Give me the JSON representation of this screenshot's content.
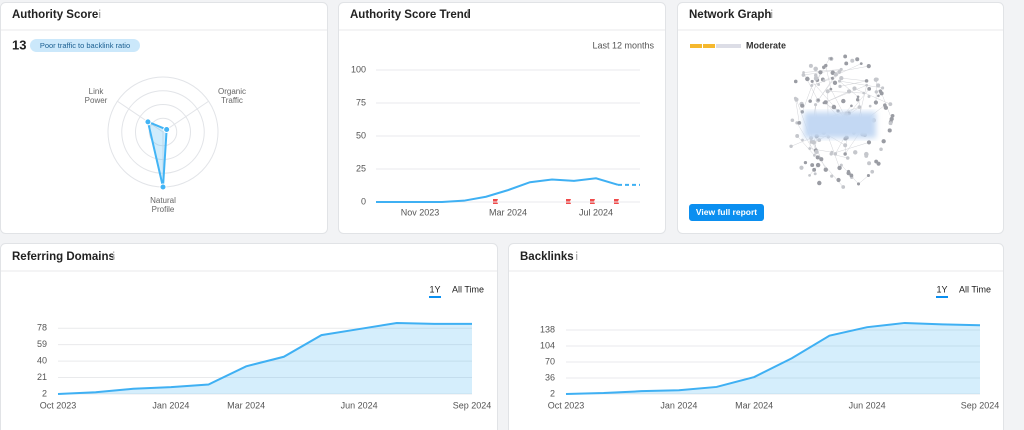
{
  "authority_score": {
    "title": "Authority Score",
    "value": 13,
    "badge": "Poor traffic to backlink ratio",
    "radar": {
      "type": "radar",
      "categories": [
        "Link Power",
        "Organic Traffic",
        "Natural Profile"
      ],
      "values": [
        33,
        8,
        100
      ],
      "rlim": [
        0,
        100
      ],
      "color": "#42b4f5"
    }
  },
  "trend": {
    "type": "line",
    "title": "Authority Score Trend",
    "period": "Last 12 months",
    "categories": [
      null,
      null,
      "Nov 2023",
      null,
      null,
      null,
      "Mar 2024",
      null,
      null,
      null,
      "Jul 2024",
      null,
      null
    ],
    "series": [
      {
        "color": "#3fb0f3",
        "values": [
          0,
          0,
          0,
          0,
          1,
          4,
          9,
          15,
          17,
          16,
          18,
          13,
          null
        ]
      },
      {
        "color": "#3fb0f3",
        "dashed": true,
        "values": [
          null,
          null,
          null,
          null,
          null,
          null,
          null,
          null,
          null,
          null,
          null,
          13,
          13
        ]
      }
    ],
    "ylim": [
      0,
      100
    ],
    "yticks": [
      0,
      25,
      50,
      75,
      100
    ],
    "grid": true
  },
  "network": {
    "title": "Network Graph",
    "level": "Moderate",
    "button": "View full report"
  },
  "referring_domains": {
    "type": "area",
    "title": "Referring Domains",
    "toggles": [
      "1Y",
      "All Time"
    ],
    "categories": [
      "Oct 2023",
      null,
      null,
      "Jan 2024",
      null,
      "Mar 2024",
      null,
      null,
      "Jun 2024",
      null,
      null,
      "Sep 2024"
    ],
    "series": [
      {
        "color": "#3fb0f3",
        "values": [
          2,
          4,
          8,
          10,
          13,
          34,
          45,
          70,
          77,
          84,
          83,
          83
        ]
      }
    ],
    "ylim": [
      2,
      84
    ],
    "yticks": [
      2,
      21,
      40,
      59,
      78
    ],
    "grid": true
  },
  "backlinks": {
    "type": "area",
    "title": "Backlinks",
    "toggles": [
      "1Y",
      "All Time"
    ],
    "categories": [
      "Oct 2023",
      null,
      null,
      "Jan 2024",
      null,
      "Mar 2024",
      null,
      null,
      "Jun 2024",
      null,
      null,
      "Sep 2024"
    ],
    "series": [
      {
        "color": "#3fb0f3",
        "values": [
          2,
          4,
          8,
          10,
          17,
          38,
          78,
          126,
          144,
          153,
          150,
          148
        ]
      }
    ],
    "ylim": [
      2,
      155
    ],
    "yticks": [
      2,
      36,
      70,
      104,
      138
    ],
    "grid": true
  }
}
